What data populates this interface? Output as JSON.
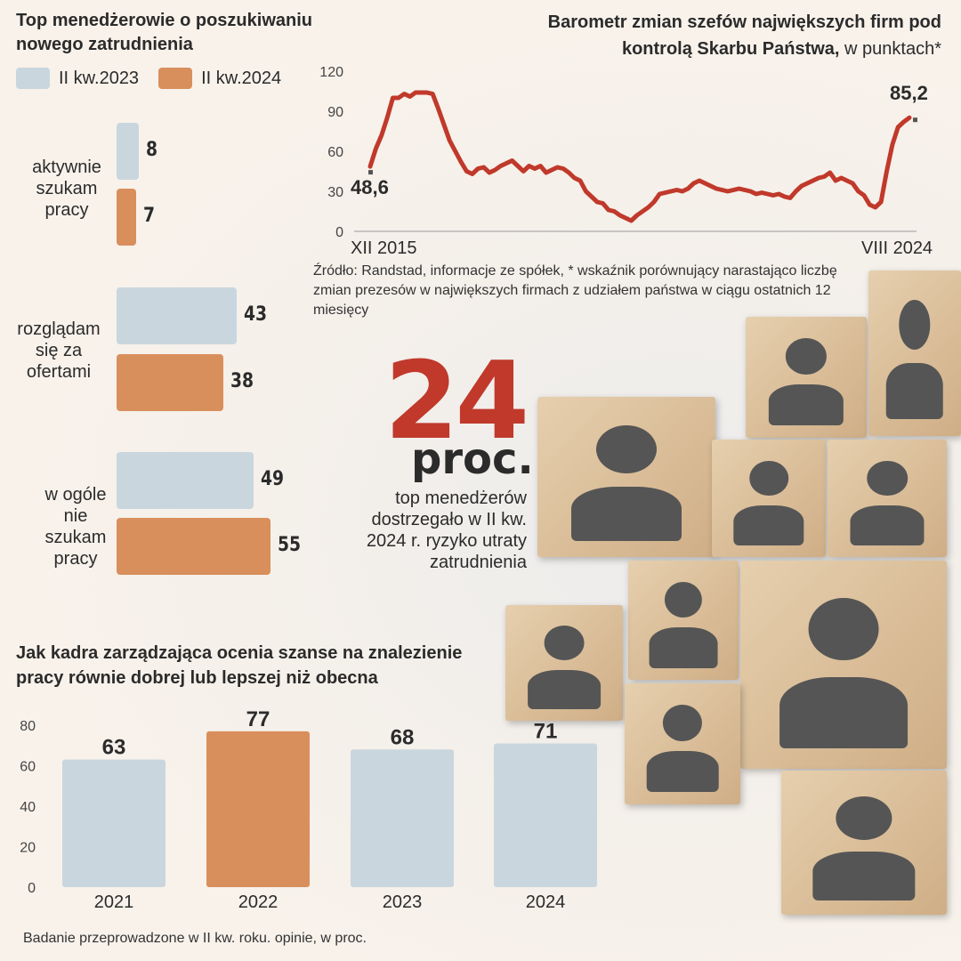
{
  "panel1": {
    "title": "Top menedżerowie o poszukiwaniu nowego zatrudnienia",
    "legend": [
      {
        "label": "II kw.2023",
        "color": "#c9d6de"
      },
      {
        "label": "II kw.2024",
        "color": "#d98f5c"
      }
    ],
    "categories": [
      "aktywnie szukam pracy",
      "rozglądam się za ofertami",
      "w ogóle nie szukam pracy"
    ],
    "values_2023": [
      "8",
      "43",
      "49"
    ],
    "values_2024": [
      "7",
      "38",
      "55"
    ]
  },
  "panel2": {
    "title_bold": "Barometr zmian szefów największych firm pod kontrolą Skarbu Państwa,",
    "title_rest": " w punktach*",
    "start_label": "48,6",
    "end_label": "85,2",
    "x_start": "XII 2015",
    "x_end": "VIII 2024",
    "yticks": [
      "0",
      "30",
      "60",
      "90",
      "120"
    ],
    "source": "Źródło: Randstad, informacje ze spółek, * wskaźnik porównujący narastająco liczbę zmian prezesów w największych firmach z udziałem państwa w ciągu ostatnich 12 miesięcy"
  },
  "highlight": {
    "number": "24",
    "unit": "proc.",
    "text": "top menedżerów dostrzegało w II kw. 2024 r. ryzyko utraty zatrudnienia"
  },
  "panel3": {
    "title": "Jak kadra zarządzająca ocenia szanse na znalezienie pracy równie dobrej lub lepszej niż obecna",
    "yticks": [
      "0",
      "20",
      "40",
      "60",
      "80"
    ],
    "years": [
      "2021",
      "2022",
      "2023",
      "2024"
    ],
    "values": [
      "63",
      "77",
      "68",
      "71"
    ]
  },
  "footnote": "Badanie przeprowadzone w  II kw. roku. opinie, w proc.",
  "chart_data": [
    {
      "type": "bar",
      "title": "Top menedżerowie o poszukiwaniu nowego zatrudnienia",
      "categories": [
        "aktywnie szukam pracy",
        "rozglądam się za ofertami",
        "w ogóle nie szukam pracy"
      ],
      "series": [
        {
          "name": "II kw.2023",
          "values": [
            8,
            43,
            49
          ]
        },
        {
          "name": "II kw.2024",
          "values": [
            7,
            38,
            55
          ]
        }
      ],
      "orientation": "horizontal",
      "legend": "top-left"
    },
    {
      "type": "line",
      "title": "Barometr zmian szefów największych firm pod kontrolą Skarbu Państwa, w punktach*",
      "ylim": [
        0,
        120
      ],
      "x_start": "XII 2015",
      "x_end": "VIII 2024",
      "y": [
        48.6,
        62,
        72,
        85,
        100,
        100,
        103,
        101,
        104,
        104,
        104,
        103,
        92,
        80,
        68,
        60,
        52,
        45,
        43,
        47,
        48,
        44,
        46,
        49,
        51,
        53,
        49,
        45,
        49,
        47,
        49,
        44,
        46,
        48,
        47,
        44,
        40,
        38,
        30,
        26,
        22,
        21,
        16,
        15,
        12,
        10,
        8,
        12,
        15,
        18,
        22,
        28,
        29,
        30,
        31,
        30,
        32,
        36,
        38,
        36,
        34,
        32,
        31,
        30,
        31,
        32,
        31,
        30,
        28,
        29,
        28,
        27,
        28,
        26,
        25,
        30,
        34,
        36,
        38,
        40,
        41,
        44,
        38,
        40,
        38,
        36,
        30,
        27,
        20,
        18,
        22,
        45,
        65,
        78,
        82,
        85.2
      ],
      "grid": false
    },
    {
      "type": "bar",
      "title": "Jak kadra zarządzająca ocenia szanse na znalezienie pracy równie dobrej lub lepszej niż obecna",
      "categories": [
        "2021",
        "2022",
        "2023",
        "2024"
      ],
      "values": [
        63,
        77,
        68,
        71
      ],
      "ylim": [
        0,
        80
      ],
      "highlight": "2022"
    }
  ]
}
